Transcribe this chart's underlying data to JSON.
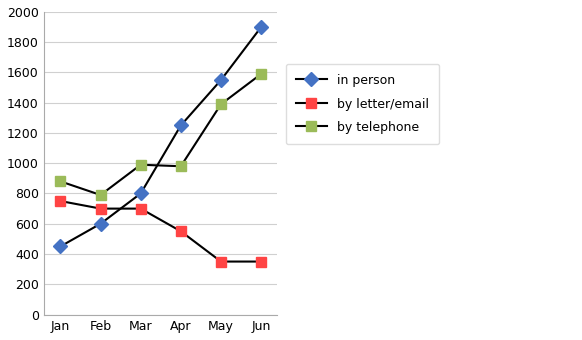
{
  "categories": [
    "Jan",
    "Feb",
    "Mar",
    "Apr",
    "May",
    "Jun"
  ],
  "series": {
    "in person": {
      "values": [
        450,
        600,
        800,
        1250,
        1550,
        1900
      ],
      "line_color": "#000000",
      "marker_color": "#4472C4",
      "marker": "D",
      "markersize": 7,
      "linewidth": 1.5,
      "label": "in person"
    },
    "by letter/email": {
      "values": [
        750,
        700,
        700,
        550,
        350,
        350
      ],
      "line_color": "#000000",
      "marker_color": "#FF4444",
      "marker": "s",
      "markersize": 7,
      "linewidth": 1.5,
      "label": "by letter/email"
    },
    "by telephone": {
      "values": [
        880,
        790,
        990,
        980,
        1390,
        1590
      ],
      "line_color": "#000000",
      "marker_color": "#9BBB59",
      "marker": "s",
      "markersize": 7,
      "linewidth": 1.5,
      "label": "by telephone"
    }
  },
  "ylim": [
    0,
    2000
  ],
  "yticks": [
    0,
    200,
    400,
    600,
    800,
    1000,
    1200,
    1400,
    1600,
    1800,
    2000
  ],
  "background_color": "#FFFFFF",
  "plot_bg_color": "#FFFFFF",
  "grid_color": "#D0D0D0",
  "figsize": [
    5.82,
    3.4
  ],
  "dpi": 100
}
